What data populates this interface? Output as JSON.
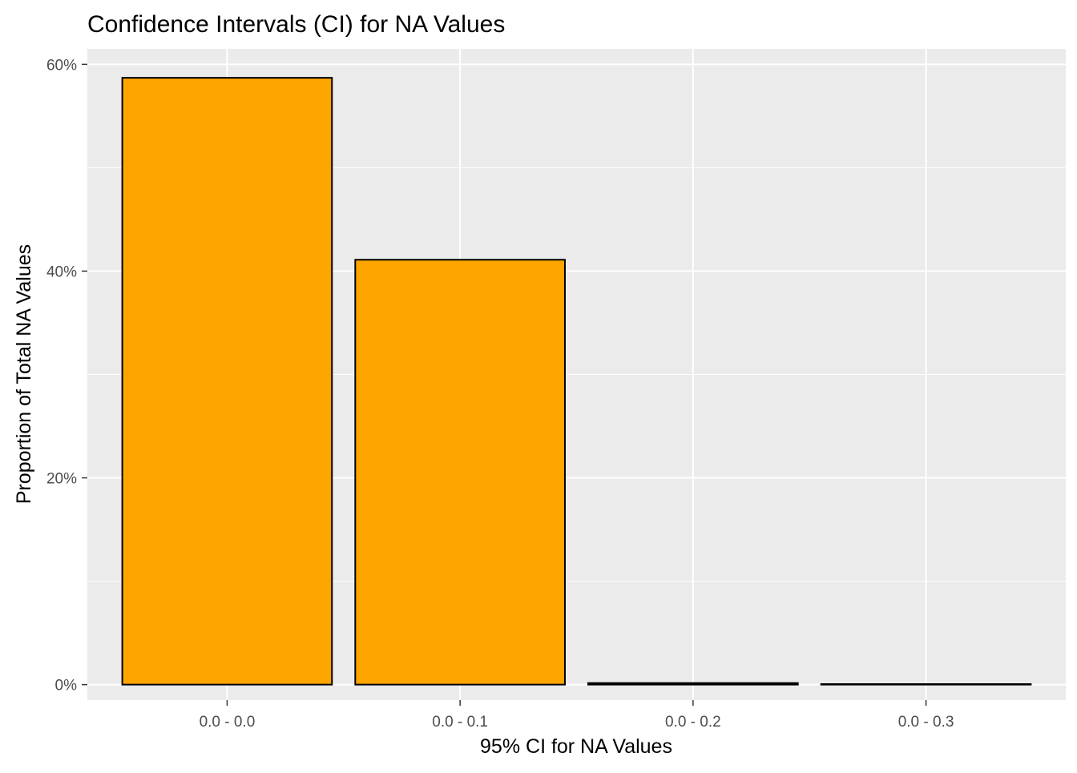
{
  "chart_data": {
    "type": "bar",
    "title": "Confidence Intervals (CI) for NA Values",
    "xlabel": "95% CI for NA Values",
    "ylabel": "Proportion of Total NA Values",
    "categories": [
      "0.0 - 0.0",
      "0.0 - 0.1",
      "0.0 - 0.2",
      "0.0 - 0.3"
    ],
    "values": [
      58.7,
      41.1,
      0.15,
      0.05
    ],
    "value_unit": "%",
    "ylim": [
      -1.5,
      61.5
    ],
    "y_ticks": [
      0,
      20,
      40,
      60
    ],
    "y_tick_labels": [
      "0%",
      "20%",
      "40%",
      "60%"
    ],
    "y_minor_ticks": [
      10,
      30,
      50
    ],
    "grid": true,
    "legend": "none",
    "colors": {
      "bar_fill": "#FFA500",
      "bar_outline": "#000000",
      "panel_background": "#EBEBEB",
      "grid_line": "#FFFFFF",
      "tick_text": "#4D4D4D"
    }
  }
}
